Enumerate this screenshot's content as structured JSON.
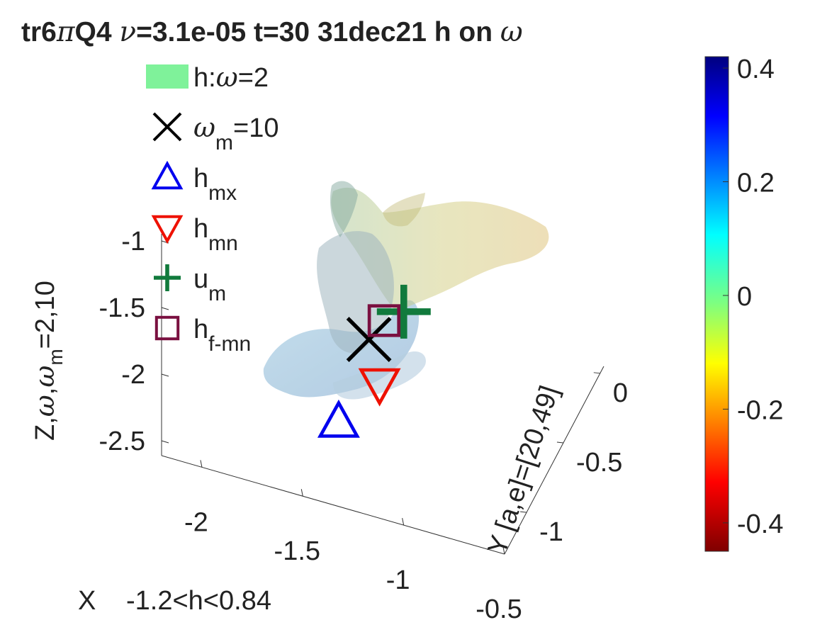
{
  "chart_data": {
    "type": "scatter",
    "title": {
      "run": "tr6",
      "pi": "π",
      "q": "Q4 ",
      "nu": "ν",
      "params": "=3.1e-05 t=30  31dec21 h on ",
      "omega": "ω"
    },
    "z_axis": {
      "label": {
        "pre": "Z,",
        "omega": "ω",
        "comma": ",",
        "omega_m": "ω",
        "sub": "m",
        "post": "=2,10"
      },
      "ticks": [
        "-1",
        "-1.5",
        "-2",
        "-2.5"
      ],
      "tick_values": [
        -1,
        -1.5,
        -2,
        -2.5
      ]
    },
    "x_axis": {
      "label": "X",
      "range_note": "-1.2<h<0.84",
      "ticks": [
        "-2",
        "-1.5",
        "-1",
        "-0.5"
      ],
      "tick_values": [
        -2,
        -1.5,
        -1,
        -0.5
      ]
    },
    "y_axis": {
      "label": "Y [a,e]=[20,49]",
      "ticks": [
        "0",
        "-0.5",
        "-1"
      ],
      "tick_values": [
        0,
        -0.5,
        -1
      ]
    },
    "colorbar": {
      "ticks": [
        "0.4",
        "0.2",
        "0",
        "-0.2",
        "-0.4"
      ],
      "tick_values": [
        0.4,
        0.2,
        0,
        -0.2,
        -0.4
      ],
      "range": [
        -0.45,
        0.42
      ],
      "colormap": "jet"
    },
    "legend": {
      "placement": "top-left",
      "entries": [
        {
          "marker": "patch",
          "color": "#7ff29a",
          "pre": "h:",
          "sym": "ω",
          "sub": "",
          "post": "=2"
        },
        {
          "marker": "x",
          "color": "#000000",
          "pre": "",
          "sym": "ω",
          "sub": "m",
          "post": "=10"
        },
        {
          "marker": "triangle-up",
          "color": "#0000ee",
          "pre": "h",
          "sym": "",
          "sub": "mx",
          "post": ""
        },
        {
          "marker": "triangle-down",
          "color": "#ee1100",
          "pre": "h",
          "sym": "",
          "sub": "mn",
          "post": ""
        },
        {
          "marker": "plus",
          "color": "#117a3c",
          "pre": "u",
          "sym": "",
          "sub": "m",
          "post": ""
        },
        {
          "marker": "square",
          "color": "#7a1040",
          "pre": "h",
          "sym": "",
          "sub": "f-mn",
          "post": ""
        }
      ]
    },
    "markers": [
      {
        "name": "h_mx",
        "symbol": "triangle-up",
        "color": "#0000ee",
        "x": -1.33,
        "y": -0.55,
        "z": -2.0
      },
      {
        "name": "h_mn",
        "symbol": "triangle-down",
        "color": "#ee1100",
        "x": -1.12,
        "y": -0.62,
        "z": -1.6
      },
      {
        "name": "omega_m",
        "symbol": "x",
        "color": "#000000",
        "x": -1.18,
        "y": -0.55,
        "z": -1.32
      },
      {
        "name": "u_m",
        "symbol": "plus",
        "color": "#117a3c",
        "x": -1.0,
        "y": -0.62,
        "z": -1.0
      },
      {
        "name": "h_f-mn",
        "symbol": "square",
        "color": "#7a1040",
        "x": -1.1,
        "y": -0.6,
        "z": -1.12
      }
    ]
  }
}
